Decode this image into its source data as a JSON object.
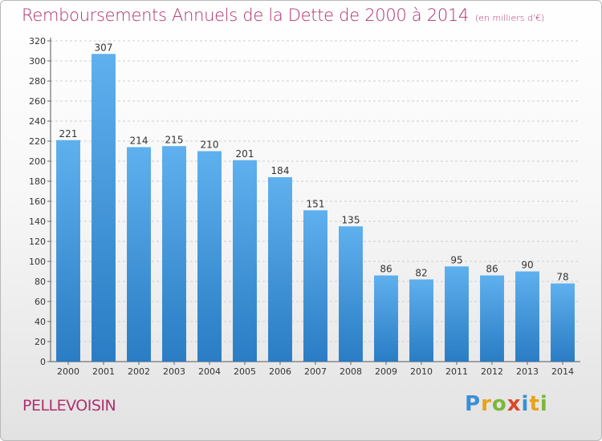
{
  "chart_data": {
    "type": "bar",
    "title": "Remboursements Annuels de la Dette de 2000 à 2014",
    "unit_note": "(en milliers d'€)",
    "xlabel": "",
    "ylabel": "",
    "categories": [
      "2000",
      "2001",
      "2002",
      "2003",
      "2004",
      "2005",
      "2006",
      "2007",
      "2008",
      "2009",
      "2010",
      "2011",
      "2012",
      "2013",
      "2014"
    ],
    "values": [
      221,
      307,
      214,
      215,
      210,
      201,
      184,
      151,
      135,
      86,
      82,
      95,
      86,
      90,
      78
    ],
    "ylim": [
      0,
      320
    ],
    "yticks": [
      0,
      20,
      40,
      60,
      80,
      100,
      120,
      140,
      160,
      180,
      200,
      220,
      240,
      260,
      280,
      300,
      320
    ],
    "grid": true,
    "bar_color": "#4f9fdf",
    "bar_color_dark": "#2a7cc4"
  },
  "footer": {
    "commune": "PELLEVOISIN",
    "logo_letters": [
      "P",
      "r",
      "o",
      "x",
      "i",
      "t",
      "i"
    ],
    "logo_colors": [
      "#3a8fd6",
      "#e8a21a",
      "#7bb63a",
      "#d84a2a",
      "#3a8fd6",
      "#e8a21a",
      "#7bb63a"
    ]
  }
}
